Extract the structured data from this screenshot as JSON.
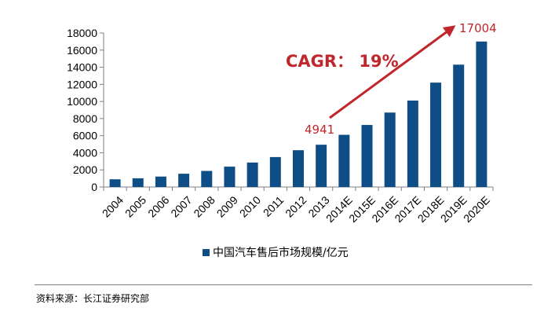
{
  "chart_data": {
    "type": "bar",
    "categories": [
      "2004",
      "2005",
      "2006",
      "2007",
      "2008",
      "2009",
      "2010",
      "2011",
      "2012",
      "2013",
      "2014E",
      "2015E",
      "2016E",
      "2017E",
      "2018E",
      "2019E",
      "2020E"
    ],
    "series": [
      {
        "name": "中国汽车售后市场规模/亿元",
        "values": [
          900,
          1020,
          1220,
          1550,
          1880,
          2380,
          2860,
          3500,
          4300,
          4941,
          6100,
          7250,
          8700,
          10100,
          12200,
          14300,
          17004
        ]
      }
    ],
    "ylim": [
      0,
      18000
    ],
    "yticks": [
      "0",
      "2000",
      "4000",
      "6000",
      "8000",
      "10000",
      "12000",
      "14000",
      "16000",
      "18000"
    ],
    "annotations": {
      "start_value": "4941",
      "end_value": "17004",
      "cagr": "CAGR：  19%"
    },
    "colors": {
      "bar": "#0e4d86",
      "annotation": "#c0272d"
    }
  },
  "source": "资料来源：长江证券研究部"
}
